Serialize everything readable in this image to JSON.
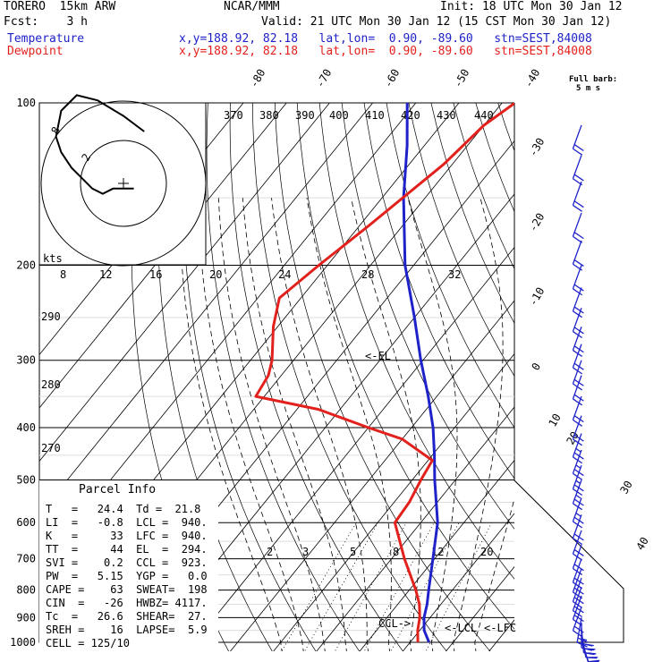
{
  "header": {
    "model": "TORERO  15km ARW",
    "org": "NCAR/MMM",
    "init": "Init: 18 UTC Mon 30 Jan 12",
    "fcst": "Fcst:    3 h",
    "valid": "Valid: 21 UTC Mon 30 Jan 12 (15 CST Mon 30 Jan 12)",
    "temperature_label": "Temperature",
    "dewpoint_label": "Dewpoint",
    "temperature_loc": "x,y=188.92, 82.18   lat,lon=  0.90, -89.60   stn=SEST,84008",
    "dewpoint_loc": "x,y=188.92, 82.18   lat,lon=  0.90, -89.60   stn=SEST,84008"
  },
  "barb_legend": {
    "title": "Full barb:",
    "sub": "5 m s"
  },
  "parcel_info": {
    "title": "Parcel Info",
    "rows": [
      "T   =   24.4  Td =  21.8",
      "LI  =   -0.8  LCL =  940.",
      "K   =     33  LFC =  940.",
      "TT  =     44  EL  =  294.",
      "SVI =    0.2  CCL =  923.",
      "PW  =   5.15  YGP =   0.0",
      "CAPE =    63  SWEAT=  198",
      "CIN  =   -26  HWBZ= 4117.",
      "Tc  =   26.6  SHEAR=  27.",
      "SREH =    16  LAPSE=  5.9",
      "CELL = 125/10"
    ]
  },
  "colors": {
    "temperature": "#1e22c8",
    "dewpoint": "#e3211c",
    "barbs": "#1e22c8"
  },
  "chart_data": {
    "type": "line",
    "title": "Skew-T log-P sounding",
    "xlabel": "Temperature (C)",
    "ylabel": "Pressure (hPa)",
    "pressure_levels": [
      1000,
      900,
      800,
      700,
      600,
      500,
      400,
      300,
      200,
      100
    ],
    "pressure_labels": [
      "1000",
      "900",
      "800",
      "700",
      "600",
      "500",
      "400",
      "300",
      "200",
      "100"
    ],
    "isotherm_labels": [
      "-80",
      "-70",
      "-60",
      "-50",
      "-40",
      "-30",
      "-20",
      "-10",
      "0",
      "10",
      "20",
      "30",
      "40"
    ],
    "theta_labels": [
      "370",
      "380",
      "390",
      "400",
      "410",
      "420",
      "430",
      "440",
      "290",
      "280",
      "270"
    ],
    "mixing_ratio_labels": [
      "2",
      "3",
      "5",
      "8",
      "12",
      "20"
    ],
    "annotations": [
      "<-EL",
      "CCL->",
      "<-LCL",
      "<-LFC"
    ],
    "series": [
      {
        "name": "Temperature",
        "points": [
          [
            1000,
            24.4
          ],
          [
            950,
            21.0
          ],
          [
            900,
            18.6
          ],
          [
            850,
            16.8
          ],
          [
            800,
            14.5
          ],
          [
            700,
            9.6
          ],
          [
            600,
            3.9
          ],
          [
            500,
            -4.8
          ],
          [
            450,
            -9.5
          ],
          [
            400,
            -15.0
          ],
          [
            350,
            -22.0
          ],
          [
            300,
            -30.5
          ],
          [
            250,
            -40.0
          ],
          [
            200,
            -52.0
          ],
          [
            150,
            -65.0
          ],
          [
            120,
            -74.0
          ],
          [
            100,
            -82.0
          ]
        ]
      },
      {
        "name": "Dewpoint",
        "points": [
          [
            1000,
            21.8
          ],
          [
            950,
            19.5
          ],
          [
            900,
            17.6
          ],
          [
            850,
            15.0
          ],
          [
            800,
            11.5
          ],
          [
            700,
            3.0
          ],
          [
            600,
            -6.0
          ],
          [
            550,
            -6.5
          ],
          [
            500,
            -8.0
          ],
          [
            460,
            -9.0
          ],
          [
            420,
            -20.0
          ],
          [
            400,
            -30.0
          ],
          [
            370,
            -45.0
          ],
          [
            350,
            -62.0
          ],
          [
            320,
            -63.0
          ],
          [
            300,
            -65.0
          ],
          [
            260,
            -71.0
          ],
          [
            230,
            -75.0
          ],
          [
            200,
            -72.0
          ],
          [
            170,
            -68.0
          ],
          [
            130,
            -62.0
          ],
          [
            110,
            -60.0
          ],
          [
            100,
            -57.0
          ]
        ]
      }
    ],
    "hodograph": {
      "unit_label": "kts",
      "ring_labels": [
        "8",
        "12",
        "16",
        "20",
        "24",
        "28",
        "32"
      ],
      "ring_value_labels": [
        "8",
        "2"
      ],
      "trace_kts": [
        [
          2,
          -1
        ],
        [
          -2,
          -1
        ],
        [
          -4,
          -2
        ],
        [
          -6,
          -1
        ],
        [
          -8,
          1
        ],
        [
          -10,
          3
        ],
        [
          -12,
          6
        ],
        [
          -13,
          9
        ],
        [
          -12,
          14
        ],
        [
          -9,
          17
        ],
        [
          -5,
          16
        ],
        [
          0,
          13
        ],
        [
          4,
          10
        ]
      ]
    },
    "wind_barbs": [
      {
        "p": 1000,
        "speed": 12,
        "dir": 160
      },
      {
        "p": 980,
        "speed": 14,
        "dir": 165
      },
      {
        "p": 960,
        "speed": 16,
        "dir": 170
      },
      {
        "p": 940,
        "speed": 16,
        "dir": 175
      },
      {
        "p": 920,
        "speed": 14,
        "dir": 180
      },
      {
        "p": 900,
        "speed": 12,
        "dir": 190
      },
      {
        "p": 860,
        "speed": 10,
        "dir": 200
      },
      {
        "p": 820,
        "speed": 10,
        "dir": 200
      },
      {
        "p": 790,
        "speed": 12,
        "dir": 200
      },
      {
        "p": 760,
        "speed": 12,
        "dir": 200
      },
      {
        "p": 730,
        "speed": 12,
        "dir": 200
      },
      {
        "p": 700,
        "speed": 12,
        "dir": 200
      },
      {
        "p": 660,
        "speed": 12,
        "dir": 200
      },
      {
        "p": 620,
        "speed": 12,
        "dir": 200
      },
      {
        "p": 580,
        "speed": 12,
        "dir": 200
      },
      {
        "p": 540,
        "speed": 14,
        "dir": 200
      },
      {
        "p": 500,
        "speed": 14,
        "dir": 200
      },
      {
        "p": 470,
        "speed": 14,
        "dir": 200
      },
      {
        "p": 440,
        "speed": 14,
        "dir": 200
      },
      {
        "p": 410,
        "speed": 14,
        "dir": 200
      },
      {
        "p": 380,
        "speed": 12,
        "dir": 200
      },
      {
        "p": 350,
        "speed": 10,
        "dir": 200
      },
      {
        "p": 320,
        "speed": 12,
        "dir": 200
      },
      {
        "p": 300,
        "speed": 10,
        "dir": 200
      },
      {
        "p": 280,
        "speed": 10,
        "dir": 200
      },
      {
        "p": 260,
        "speed": 12,
        "dir": 200
      },
      {
        "p": 240,
        "speed": 10,
        "dir": 200
      },
      {
        "p": 220,
        "speed": 10,
        "dir": 200
      },
      {
        "p": 200,
        "speed": 10,
        "dir": 200
      },
      {
        "p": 180,
        "speed": 12,
        "dir": 200
      },
      {
        "p": 160,
        "speed": 12,
        "dir": 200
      },
      {
        "p": 140,
        "speed": 12,
        "dir": 200
      },
      {
        "p": 125,
        "speed": 10,
        "dir": 200
      },
      {
        "p": 110,
        "speed": 10,
        "dir": 200
      }
    ]
  }
}
